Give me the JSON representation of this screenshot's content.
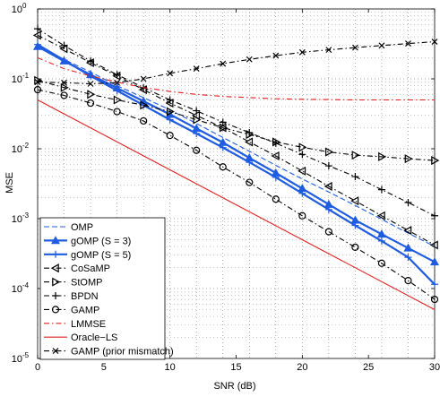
{
  "chart_data": {
    "type": "line",
    "title": "",
    "xlabel": "SNR (dB)",
    "ylabel": "MSE",
    "xlim": [
      0,
      30
    ],
    "ylim": [
      1e-05,
      1
    ],
    "y_scale": "log",
    "grid": true,
    "x_ticks": [
      0,
      5,
      10,
      15,
      20,
      25,
      30
    ],
    "x_tick_labels": [
      "0",
      "5",
      "10",
      "15",
      "20",
      "25",
      "30"
    ],
    "y_ticks": [
      1e-05,
      0.0001,
      0.001,
      0.01,
      0.1,
      1
    ],
    "y_tick_labels": [
      {
        "base": "10",
        "exp": "-5"
      },
      {
        "base": "10",
        "exp": "-4"
      },
      {
        "base": "10",
        "exp": "-3"
      },
      {
        "base": "10",
        "exp": "-2"
      },
      {
        "base": "10",
        "exp": "-1"
      },
      {
        "base": "10",
        "exp": "0"
      }
    ],
    "legend_position": "bottom-left",
    "series": [
      {
        "name": "OMP",
        "color": "#1f5ce0",
        "dash": "dashed",
        "marker": "none",
        "x": [
          0,
          2,
          4,
          6,
          8,
          10,
          12,
          14,
          16,
          18,
          20,
          22,
          24,
          26,
          28,
          30
        ],
        "y": [
          0.3,
          0.19,
          0.125,
          0.08,
          0.054,
          0.036,
          0.023,
          0.0145,
          0.0092,
          0.0058,
          0.0037,
          0.0024,
          0.00155,
          0.00098,
          0.00062,
          0.0004
        ]
      },
      {
        "name": "gOMP (S = 3)",
        "color": "#1f5ce0",
        "dash": "solid",
        "marker": "triangle",
        "thick": true,
        "x": [
          0,
          2,
          4,
          6,
          8,
          10,
          12,
          14,
          16,
          18,
          20,
          22,
          24,
          26,
          28,
          30
        ],
        "y": [
          0.29,
          0.18,
          0.115,
          0.074,
          0.048,
          0.031,
          0.0195,
          0.0123,
          0.0074,
          0.0045,
          0.0027,
          0.0016,
          0.00095,
          0.0006,
          0.00038,
          0.00024
        ]
      },
      {
        "name": "gOMP (S = 5)",
        "color": "#1f5ce0",
        "dash": "solid",
        "marker": "plus",
        "thick": true,
        "x": [
          0,
          2,
          4,
          6,
          8,
          10,
          12,
          14,
          16,
          18,
          20,
          22,
          24,
          26,
          28,
          30
        ],
        "y": [
          0.31,
          0.185,
          0.11,
          0.068,
          0.042,
          0.026,
          0.0165,
          0.0104,
          0.0064,
          0.0039,
          0.0023,
          0.00135,
          0.0008,
          0.00048,
          0.00028,
          0.000115
        ]
      },
      {
        "name": "CoSaMP",
        "color": "#000000",
        "dash": "dashdot",
        "marker": "triangle-left",
        "x": [
          0,
          2,
          4,
          6,
          8,
          10,
          12,
          14,
          16,
          18,
          20,
          22,
          24,
          26,
          28,
          30
        ],
        "y": [
          0.42,
          0.27,
          0.17,
          0.11,
          0.07,
          0.045,
          0.03,
          0.02,
          0.0125,
          0.0079,
          0.0048,
          0.0029,
          0.0018,
          0.0011,
          0.00068,
          0.00042
        ]
      },
      {
        "name": "StOMP",
        "color": "#000000",
        "dash": "dashdot",
        "marker": "triangle-right",
        "x": [
          0,
          2,
          4,
          6,
          8,
          10,
          12,
          14,
          16,
          18,
          20,
          22,
          24,
          26,
          28,
          30
        ],
        "y": [
          0.095,
          0.075,
          0.06,
          0.05,
          0.042,
          0.034,
          0.026,
          0.02,
          0.016,
          0.0125,
          0.0105,
          0.009,
          0.0081,
          0.0077,
          0.0072,
          0.0068
        ]
      },
      {
        "name": "BPDN",
        "color": "#000000",
        "dash": "dashdot",
        "marker": "plus",
        "x": [
          0,
          2,
          4,
          6,
          8,
          10,
          12,
          14,
          16,
          18,
          20,
          22,
          24,
          26,
          28,
          30
        ],
        "y": [
          0.52,
          0.3,
          0.18,
          0.115,
          0.075,
          0.05,
          0.035,
          0.024,
          0.017,
          0.012,
          0.0083,
          0.0057,
          0.004,
          0.0026,
          0.0017,
          0.0011
        ]
      },
      {
        "name": "GAMP",
        "color": "#000000",
        "dash": "dashdot",
        "marker": "circle",
        "x": [
          0,
          2,
          4,
          6,
          8,
          10,
          12,
          14,
          16,
          18,
          20,
          22,
          24,
          26,
          28,
          30
        ],
        "y": [
          0.07,
          0.058,
          0.045,
          0.034,
          0.025,
          0.0155,
          0.0095,
          0.0055,
          0.0033,
          0.0019,
          0.0011,
          0.00065,
          0.00039,
          0.00023,
          0.00013,
          7e-05
        ]
      },
      {
        "name": "LMMSE",
        "color": "#e0201f",
        "dash": "dashdot",
        "marker": "none",
        "x": [
          0,
          2,
          4,
          6,
          8,
          10,
          12,
          14,
          16,
          18,
          20,
          22,
          24,
          26,
          28,
          30
        ],
        "y": [
          0.2,
          0.14,
          0.11,
          0.09,
          0.075,
          0.066,
          0.06,
          0.056,
          0.054,
          0.052,
          0.051,
          0.0505,
          0.05,
          0.05,
          0.05,
          0.05
        ]
      },
      {
        "name": "Oracle−LS",
        "color": "#e0201f",
        "dash": "solid",
        "marker": "none",
        "x": [
          0,
          30
        ],
        "y": [
          0.05,
          5e-05
        ]
      },
      {
        "name": "GAMP (prior mismatch)",
        "color": "#000000",
        "dash": "dashdot",
        "marker": "x",
        "x": [
          0,
          2,
          4,
          6,
          8,
          10,
          12,
          14,
          16,
          18,
          20,
          22,
          24,
          26,
          28,
          30
        ],
        "y": [
          0.09,
          0.088,
          0.085,
          0.088,
          0.1,
          0.12,
          0.14,
          0.165,
          0.19,
          0.215,
          0.24,
          0.26,
          0.28,
          0.3,
          0.32,
          0.34
        ]
      }
    ]
  }
}
